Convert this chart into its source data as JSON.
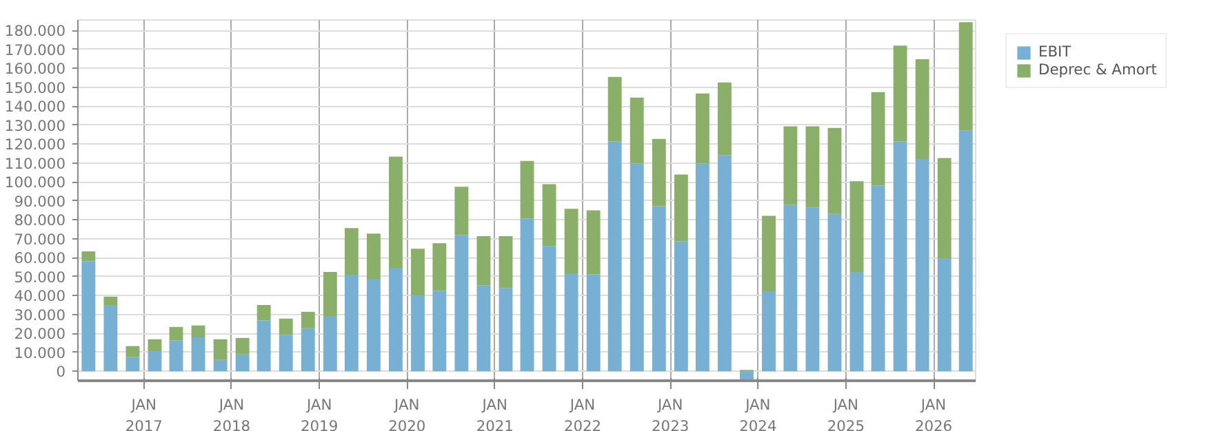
{
  "chart_data": {
    "type": "bar",
    "stacked": true,
    "x": [
      "2016-05-15",
      "2016-08-15",
      "2016-11-15",
      "2017-02-15",
      "2017-05-15",
      "2017-08-15",
      "2017-11-15",
      "2018-02-15",
      "2018-05-15",
      "2018-08-15",
      "2018-11-15",
      "2019-02-15",
      "2019-05-15",
      "2019-08-15",
      "2019-11-15",
      "2020-02-15",
      "2020-05-15",
      "2020-08-15",
      "2020-11-15",
      "2021-02-15",
      "2021-05-15",
      "2021-08-15",
      "2021-11-15",
      "2022-02-15",
      "2022-05-15",
      "2022-08-15",
      "2022-11-15",
      "2023-02-15",
      "2023-05-15",
      "2023-08-15",
      "2023-11-15",
      "2024-02-15",
      "2024-05-15",
      "2024-08-15",
      "2024-11-15",
      "2025-02-15",
      "2025-05-15",
      "2025-08-15",
      "2025-11-15",
      "2026-02-15",
      "2026-05-15"
    ],
    "series": [
      {
        "name": "EBIT",
        "color": "#78b0d4",
        "values": [
          58200,
          35000,
          7500,
          10600,
          16200,
          17900,
          6000,
          8900,
          26800,
          19100,
          22700,
          29200,
          51000,
          48800,
          54600,
          40100,
          42500,
          72000,
          45400,
          44000,
          80700,
          66200,
          51700,
          51200,
          121300,
          109700,
          87200,
          68600,
          109700,
          114000,
          -4500,
          42300,
          87900,
          86500,
          83100,
          52400,
          98100,
          121300,
          112100,
          59700,
          127100
        ]
      },
      {
        "name": "Deprec & Amort",
        "color": "#8aaf68",
        "values": [
          5100,
          4400,
          5800,
          6300,
          7200,
          6300,
          10900,
          8700,
          8200,
          8700,
          8700,
          23200,
          24600,
          23900,
          58700,
          24600,
          25100,
          25400,
          25900,
          27300,
          30400,
          32600,
          34100,
          33800,
          34100,
          34800,
          35500,
          35300,
          37000,
          38500,
          700,
          39800,
          41400,
          42800,
          45400,
          47900,
          49300,
          50700,
          52700,
          52900,
          57200
        ]
      }
    ],
    "xlim": [
      "2016-04-01",
      "2026-06-25"
    ],
    "xticks": [
      {
        "value": "2017-01-01",
        "label": "JAN\n2017"
      },
      {
        "value": "2018-01-01",
        "label": "JAN\n2018"
      },
      {
        "value": "2019-01-01",
        "label": "JAN\n2019"
      },
      {
        "value": "2020-01-01",
        "label": "JAN\n2020"
      },
      {
        "value": "2021-01-01",
        "label": "JAN\n2021"
      },
      {
        "value": "2022-01-01",
        "label": "JAN\n2022"
      },
      {
        "value": "2023-01-01",
        "label": "JAN\n2023"
      },
      {
        "value": "2024-01-01",
        "label": "JAN\n2024"
      },
      {
        "value": "2025-01-01",
        "label": "JAN\n2025"
      },
      {
        "value": "2026-01-01",
        "label": "JAN\n2026"
      }
    ],
    "ylim": [
      -5000,
      185500
    ],
    "yticks": [
      {
        "value": 0,
        "label": "0"
      },
      {
        "value": 10000,
        "label": "10.000"
      },
      {
        "value": 20000,
        "label": "20.000"
      },
      {
        "value": 30000,
        "label": "30.000"
      },
      {
        "value": 40000,
        "label": "40.000"
      },
      {
        "value": 50000,
        "label": "50.000"
      },
      {
        "value": 60000,
        "label": "60.000"
      },
      {
        "value": 70000,
        "label": "70.000"
      },
      {
        "value": 80000,
        "label": "80.000"
      },
      {
        "value": 90000,
        "label": "90.000"
      },
      {
        "value": 100000,
        "label": "100.000"
      },
      {
        "value": 110000,
        "label": "110.000"
      },
      {
        "value": 120000,
        "label": "120.000"
      },
      {
        "value": 130000,
        "label": "130.000"
      },
      {
        "value": 140000,
        "label": "140.000"
      },
      {
        "value": 150000,
        "label": "150.000"
      },
      {
        "value": 160000,
        "label": "160.000"
      },
      {
        "value": 170000,
        "label": "170.000"
      },
      {
        "value": 180000,
        "label": "180.000"
      }
    ],
    "grid": true,
    "legend": "top right"
  }
}
